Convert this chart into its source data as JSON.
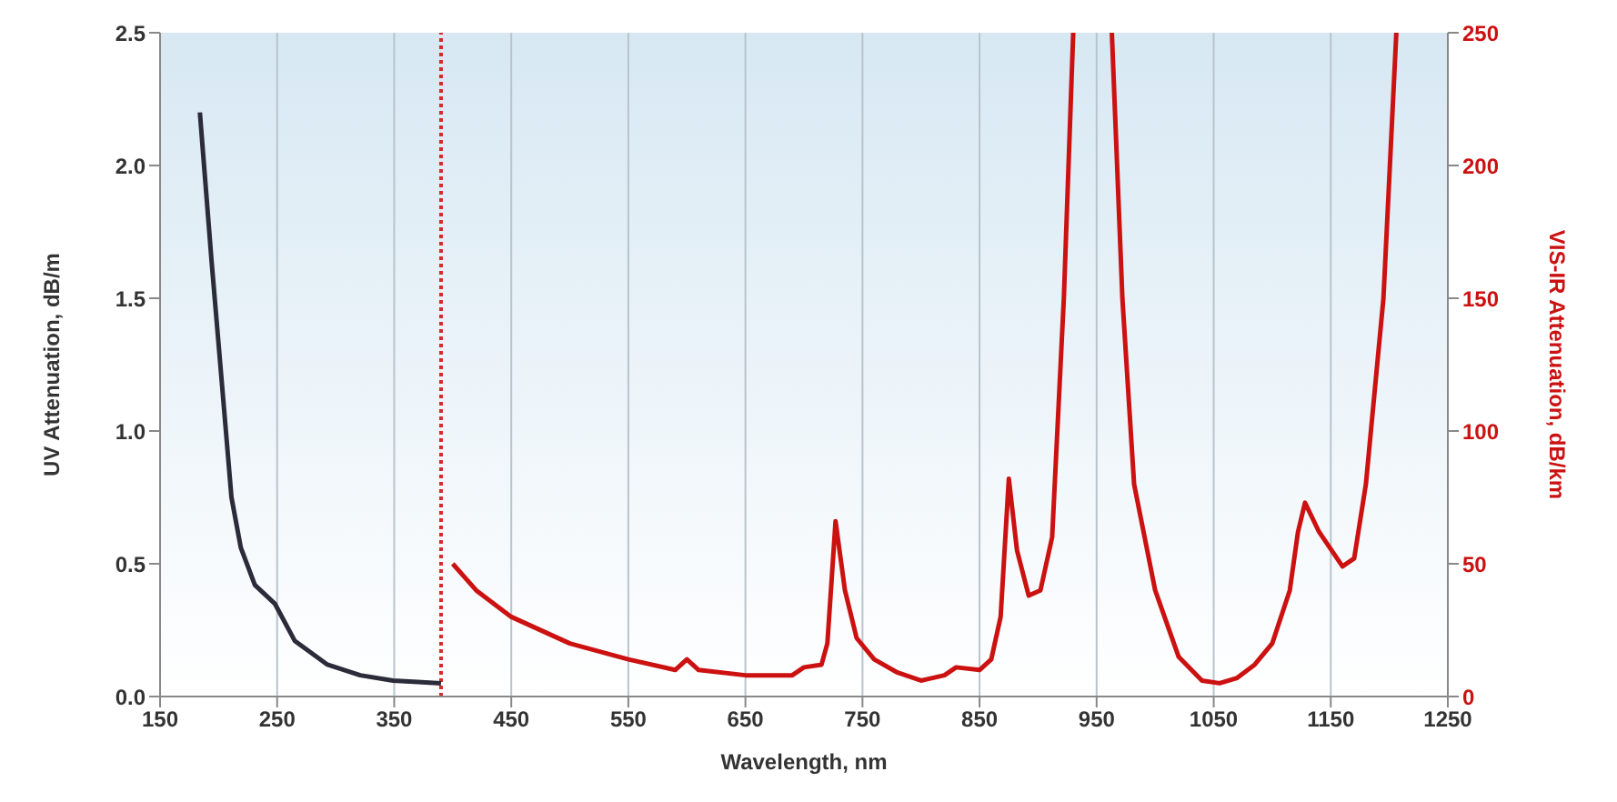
{
  "chart_data": {
    "type": "line",
    "xlabel": "Wavelength, nm",
    "ylabel": "UV Attenuation, dB/m",
    "y2label": "VIS-IR Attenuation, dB/km",
    "xlim": [
      150,
      1250
    ],
    "xticks": [
      150,
      250,
      350,
      450,
      550,
      650,
      750,
      850,
      950,
      1050,
      1150,
      1250
    ],
    "ylim": [
      0,
      2.5
    ],
    "yticks": [
      {
        "value": 0,
        "label": "0.0"
      },
      0.5,
      {
        "value": 1,
        "label": "1.0"
      },
      1.5,
      {
        "value": 2,
        "label": "2.0"
      },
      2.5
    ],
    "y2lim": [
      0,
      250
    ],
    "y2ticks": [
      0,
      50,
      100,
      150,
      200,
      250
    ],
    "grid": true,
    "marker": "none",
    "line_style": "solid",
    "ref_lines": [
      {
        "axis": "x",
        "value": 390,
        "color": "#d42a2a",
        "line_style": "dotted"
      }
    ],
    "series": [
      {
        "color": "#2b2b3a",
        "x": [
          184,
          194,
          203,
          211,
          219,
          231,
          248,
          265,
          293,
          321,
          349,
          370,
          390
        ],
        "values": [
          2.2,
          1.64,
          1.17,
          0.75,
          0.56,
          0.42,
          0.35,
          0.21,
          0.12,
          0.08,
          0.06,
          0.055,
          0.05
        ]
      },
      {
        "color": "#cc1111",
        "axis": "y2",
        "x": [
          400,
          420,
          450,
          500,
          550,
          590,
          600,
          610,
          650,
          690,
          700,
          715,
          720,
          727,
          735,
          745,
          760,
          780,
          800,
          820,
          830,
          850,
          860,
          868,
          875,
          882,
          892,
          902,
          912,
          922,
          930,
          945,
          963,
          972,
          982,
          1000,
          1020,
          1040,
          1055,
          1070,
          1085,
          1100,
          1115,
          1122,
          1128,
          1140,
          1160,
          1170,
          1180,
          1195,
          1206
        ],
        "values": [
          50,
          40,
          30,
          20,
          14,
          10,
          14,
          10,
          8,
          8,
          11,
          12,
          20,
          66,
          40,
          22,
          14,
          9,
          6,
          8,
          11,
          10,
          14,
          30,
          82,
          55,
          38,
          40,
          60,
          150,
          250,
          null,
          250,
          150,
          80,
          40,
          15,
          6,
          5,
          7,
          12,
          20,
          40,
          62,
          73,
          62,
          49,
          52,
          80,
          150,
          250
        ]
      }
    ]
  }
}
